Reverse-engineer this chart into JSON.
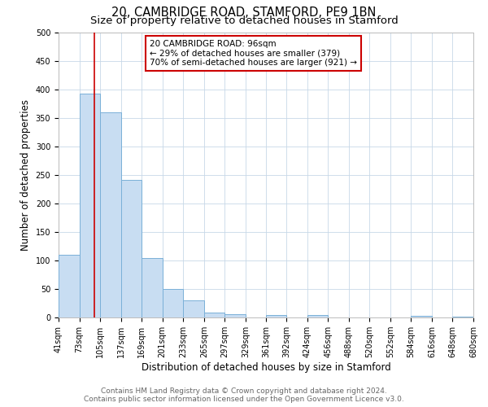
{
  "title": "20, CAMBRIDGE ROAD, STAMFORD, PE9 1BN",
  "subtitle": "Size of property relative to detached houses in Stamford",
  "xlabel": "Distribution of detached houses by size in Stamford",
  "ylabel": "Number of detached properties",
  "bin_edges": [
    41,
    73,
    105,
    137,
    169,
    201,
    233,
    265,
    297,
    329,
    361,
    392,
    424,
    456,
    488,
    520,
    552,
    584,
    616,
    648,
    680
  ],
  "bar_heights": [
    110,
    393,
    360,
    242,
    105,
    50,
    30,
    8,
    6,
    0,
    5,
    0,
    5,
    0,
    0,
    0,
    0,
    3,
    0,
    2
  ],
  "bar_color": "#c8ddf2",
  "bar_edgecolor": "#7ab0d8",
  "property_line_x": 96,
  "property_line_color": "#cc0000",
  "ylim": [
    0,
    500
  ],
  "yticks": [
    0,
    50,
    100,
    150,
    200,
    250,
    300,
    350,
    400,
    450,
    500
  ],
  "annotation_title": "20 CAMBRIDGE ROAD: 96sqm",
  "annotation_line1": "← 29% of detached houses are smaller (379)",
  "annotation_line2": "70% of semi-detached houses are larger (921) →",
  "annotation_box_color": "#cc0000",
  "tick_labels": [
    "41sqm",
    "73sqm",
    "105sqm",
    "137sqm",
    "169sqm",
    "201sqm",
    "233sqm",
    "265sqm",
    "297sqm",
    "329sqm",
    "361sqm",
    "392sqm",
    "424sqm",
    "456sqm",
    "488sqm",
    "520sqm",
    "552sqm",
    "584sqm",
    "616sqm",
    "648sqm",
    "680sqm"
  ],
  "footer_line1": "Contains HM Land Registry data © Crown copyright and database right 2024.",
  "footer_line2": "Contains public sector information licensed under the Open Government Licence v3.0.",
  "bg_color": "#ffffff",
  "grid_color": "#c8d8e8",
  "title_fontsize": 10.5,
  "subtitle_fontsize": 9.5,
  "axis_label_fontsize": 8.5,
  "tick_fontsize": 7,
  "footer_fontsize": 6.5,
  "annot_fontsize": 7.5
}
